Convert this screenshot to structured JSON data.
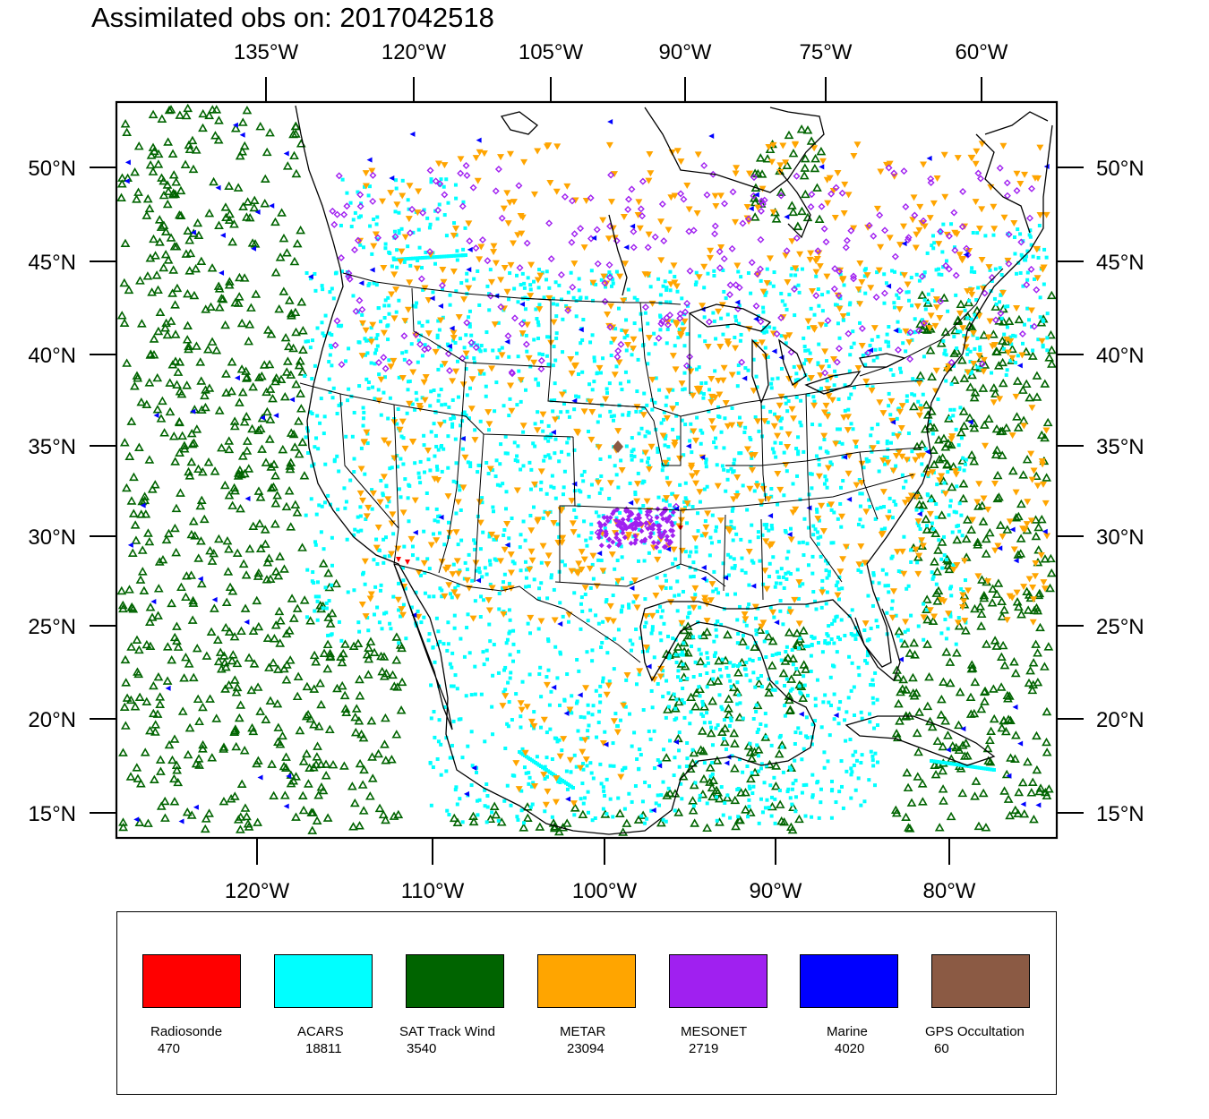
{
  "title": "Assimilated obs on: 2017042518",
  "axes": {
    "top_lon_labels": [
      "135°W",
      "120°W",
      "105°W",
      "90°W",
      "75°W",
      "60°W"
    ],
    "bottom_lon_labels": [
      "120°W",
      "110°W",
      "100°W",
      "90°W",
      "80°W"
    ],
    "lat_labels": [
      "50°N",
      "45°N",
      "40°N",
      "35°N",
      "30°N",
      "25°N",
      "20°N",
      "15°N"
    ]
  },
  "legend": [
    {
      "name": "Radiosonde",
      "count": "470",
      "color": "#ff0000"
    },
    {
      "name": "ACARS",
      "count": "18811",
      "color": "#00ffff"
    },
    {
      "name": "SAT Track Wind",
      "count": "3540",
      "color": "#006400"
    },
    {
      "name": "METAR",
      "count": "23094",
      "color": "#ffa500"
    },
    {
      "name": "MESONET",
      "count": "2719",
      "color": "#a020f0"
    },
    {
      "name": "Marine",
      "count": "4020",
      "color": "#0000ff"
    },
    {
      "name": "GPS Occultation",
      "count": "60",
      "color": "#8b5a44"
    }
  ]
}
